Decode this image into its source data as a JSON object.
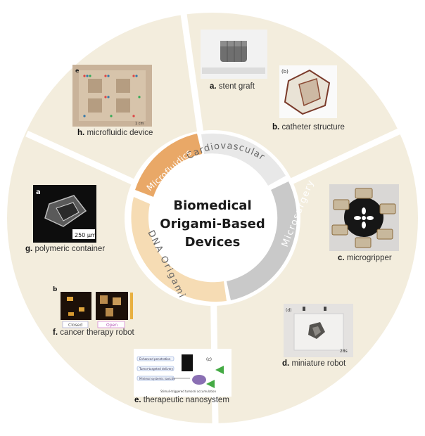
{
  "center": {
    "line1": "Biomedical",
    "line2": "Origami-Based",
    "line3": "Devices"
  },
  "categories": {
    "cardiovascular": "Cardiovascular",
    "microsurgery": "Microsurgery",
    "dna_origami": "DNA Origami",
    "microfluidics": "Microfluidics"
  },
  "devices": [
    {
      "letter": "a.",
      "name": "stent graft"
    },
    {
      "letter": "b.",
      "name": "catheter structure"
    },
    {
      "letter": "c.",
      "name": "microgripper"
    },
    {
      "letter": "d.",
      "name": "miniature robot"
    },
    {
      "letter": "e.",
      "name": "therapeutic nanosystem"
    },
    {
      "letter": "f.",
      "name": "cancer therapy robot"
    },
    {
      "letter": "g.",
      "name": "polymeric container"
    },
    {
      "letter": "h.",
      "name": "microfluidic device"
    }
  ],
  "image_labels": {
    "h_panel": "e",
    "h_scale": "1 cm",
    "b_panel": "(b)",
    "g_panel": "a",
    "g_scale": "250 μm",
    "f_panel": "b",
    "f_closed": "Closed",
    "f_open": "Open",
    "d_panel": "(d)",
    "d_time": "28s",
    "e_panel": "(c)",
    "e_line1": "Enhanced penetration",
    "e_line2": "Tumor-targeted delivery",
    "e_line3": "Minimal systemic toxicity",
    "e_bottom": "Stimuli-triggered tumoral accumulation"
  },
  "colors": {
    "outer_ring": "#f3eddd",
    "divider": "#ffffff",
    "cardiovascular_band": "#e8e8e8",
    "microsurgery_band": "#c9c9c9",
    "dna_band": "#f6dcb4",
    "microfluidics_band": "#e9a867",
    "center_fill": "#ffffff"
  }
}
